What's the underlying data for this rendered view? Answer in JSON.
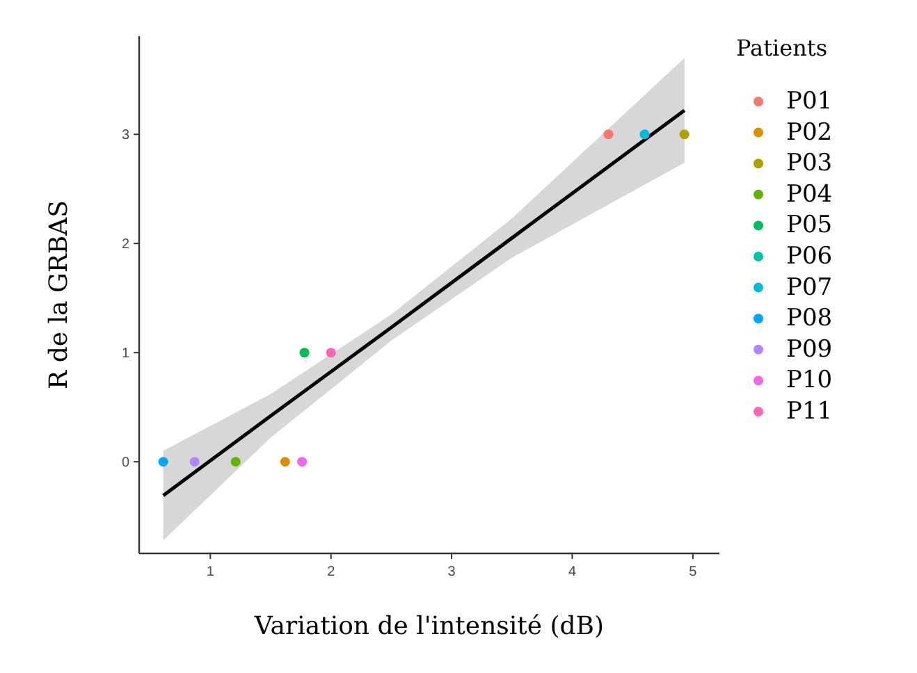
{
  "chart_data": {
    "type": "scatter",
    "xlabel": "Variation de l'intensité (dB)",
    "ylabel": "R de la GRBAS",
    "legend_title": "Patients",
    "legend": "right",
    "grid": false,
    "marker": "circle",
    "xlim": [
      0.41,
      5.22
    ],
    "ylim": [
      -0.84,
      3.9
    ],
    "xticks": [
      1,
      2,
      3,
      4,
      5
    ],
    "yticks": [
      0,
      1,
      2,
      3
    ],
    "series": [
      {
        "name": "P01",
        "color": "#f8766d",
        "x": [
          4.3
        ],
        "values": [
          3
        ]
      },
      {
        "name": "P02",
        "color": "#db8e00",
        "x": [
          1.62
        ],
        "values": [
          0
        ]
      },
      {
        "name": "P03",
        "color": "#aea200",
        "x": [
          4.93
        ],
        "values": [
          3
        ]
      },
      {
        "name": "P04",
        "color": "#64b200",
        "x": [
          1.21
        ],
        "values": [
          0
        ]
      },
      {
        "name": "P05",
        "color": "#00bd5c",
        "x": [
          1.78
        ],
        "values": [
          1
        ]
      },
      {
        "name": "P06",
        "color": "#00c1a7",
        "x": [
          null
        ],
        "values": [
          null
        ]
      },
      {
        "name": "P07",
        "color": "#00bade",
        "x": [
          4.6
        ],
        "values": [
          3
        ]
      },
      {
        "name": "P08",
        "color": "#00a6ff",
        "x": [
          0.61
        ],
        "values": [
          0
        ]
      },
      {
        "name": "P09",
        "color": "#b385ff",
        "x": [
          0.87
        ],
        "values": [
          0
        ]
      },
      {
        "name": "P10",
        "color": "#ef67eb",
        "x": [
          1.76
        ],
        "values": [
          0
        ]
      },
      {
        "name": "P11",
        "color": "#ff63b6",
        "x": [
          2.0
        ],
        "values": [
          1
        ]
      },
      {
        "type": "line",
        "color": "#000000",
        "x": [
          0.61,
          1.5,
          2.5,
          3.5,
          4.93
        ],
        "values": [
          -0.31,
          0.42,
          1.23,
          2.05,
          3.22
        ],
        "lower": [
          -0.72,
          0.22,
          1.11,
          1.87,
          2.74
        ],
        "upper": [
          0.1,
          0.62,
          1.35,
          2.23,
          3.7
        ],
        "marker": "none"
      }
    ]
  }
}
